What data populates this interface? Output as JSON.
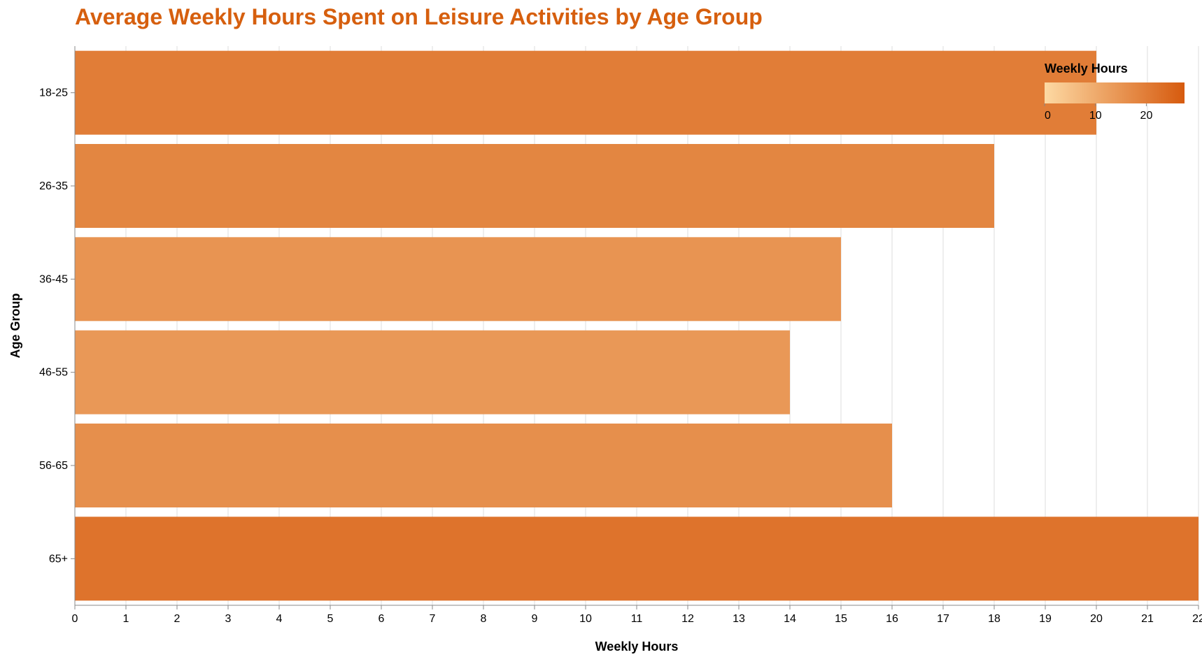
{
  "chart_data": {
    "type": "bar",
    "orientation": "horizontal",
    "title": "Average Weekly Hours Spent on Leisure Activities by Age Group",
    "xlabel": "Weekly Hours",
    "ylabel": "Age Group",
    "categories": [
      "18-25",
      "26-35",
      "36-45",
      "46-55",
      "56-65",
      "65+"
    ],
    "values": [
      20,
      18,
      15,
      14,
      16,
      22
    ],
    "xlim": [
      0,
      22
    ],
    "x_ticks": [
      0,
      1,
      2,
      3,
      4,
      5,
      6,
      7,
      8,
      9,
      10,
      11,
      12,
      13,
      14,
      15,
      16,
      17,
      18,
      19,
      20,
      21,
      22
    ],
    "grid": "vertical",
    "legend": {
      "title": "Weekly Hours",
      "type": "gradient",
      "placement": "top-right",
      "ticks": [
        0,
        10,
        20
      ],
      "domain": [
        0,
        27.5
      ]
    },
    "colors": {
      "title": "#d65f0e",
      "gradient_start": "#fdd9a3",
      "gradient_end": "#d65a0e",
      "grid": "#dddddd",
      "axis": "#888888"
    }
  }
}
